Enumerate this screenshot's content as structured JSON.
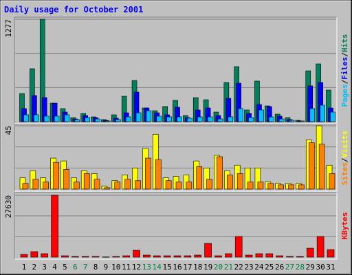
{
  "chart_data": {
    "type": "bar",
    "title": "Daily usage for October 2001",
    "title_color": "#0000ff",
    "background": "#c0c0c0",
    "categories": [
      "1",
      "2",
      "3",
      "4",
      "5",
      "6",
      "7",
      "8",
      "9",
      "10",
      "11",
      "12",
      "13",
      "14",
      "15",
      "16",
      "17",
      "18",
      "19",
      "20",
      "21",
      "22",
      "23",
      "24",
      "25",
      "26",
      "27",
      "28",
      "29",
      "30",
      "31"
    ],
    "category_colors": [
      "#000000",
      "#000000",
      "#000000",
      "#000000",
      "#000000",
      "#008040",
      "#008040",
      "#000000",
      "#000000",
      "#000000",
      "#000000",
      "#000000",
      "#008040",
      "#008040",
      "#000000",
      "#000000",
      "#000000",
      "#000000",
      "#000000",
      "#008040",
      "#008040",
      "#000000",
      "#000000",
      "#000000",
      "#000000",
      "#000000",
      "#008040",
      "#008040",
      "#000000",
      "#000000",
      "#000000"
    ],
    "legend_separator": "/",
    "panels": [
      {
        "ylim": [
          0,
          1277
        ],
        "yticks": [
          1277
        ],
        "grid": true,
        "series": [
          {
            "name": "Hits",
            "color": "#00805c",
            "values": [
              351,
              660,
              1277,
              231,
              163,
              51,
              103,
              60,
              26,
              86,
              317,
              514,
              171,
              137,
              189,
              266,
              77,
              300,
              274,
              120,
              489,
              686,
              146,
              506,
              197,
              94,
              51,
              17,
              634,
              720,
              394
            ]
          },
          {
            "name": "Files",
            "color": "#0000ff",
            "values": [
              163,
              326,
              300,
              231,
              120,
              34,
              77,
              51,
              17,
              43,
              111,
              369,
              171,
              111,
              86,
              180,
              51,
              146,
              171,
              77,
              291,
              480,
              103,
              214,
              189,
              69,
              26,
              9,
              446,
              489,
              171
            ]
          },
          {
            "name": "Pages",
            "color": "#00c0ff",
            "values": [
              86,
              86,
              69,
              69,
              86,
              26,
              51,
              34,
              9,
              26,
              60,
              111,
              137,
              69,
              60,
              60,
              43,
              60,
              60,
              34,
              60,
              163,
              51,
              146,
              60,
              34,
              17,
              9,
              163,
              206,
              120
            ]
          }
        ]
      },
      {
        "ylim": [
          0,
          45
        ],
        "yticks": [
          45
        ],
        "grid": true,
        "series": [
          {
            "name": "Visits",
            "color": "#ffff00",
            "values": [
              8,
              13,
              8,
              22,
              20,
              8,
              13,
              11,
              2,
              6,
              10,
              15,
              29,
              39,
              8,
              9,
              10,
              20,
              15,
              24,
              13,
              17,
              15,
              15,
              5,
              4,
              4,
              4,
              35,
              45,
              17
            ]
          },
          {
            "name": "Sites",
            "color": "#ff8000",
            "values": [
              4,
              7,
              5,
              19,
              14,
              5,
              11,
              7,
              1,
              5,
              7,
              6,
              22,
              21,
              6,
              5,
              5,
              16,
              7,
              23,
              10,
              11,
              5,
              5,
              4,
              3,
              3,
              3,
              33,
              32,
              11
            ]
          }
        ]
      },
      {
        "ylim": [
          0,
          27630
        ],
        "yticks": [
          27630
        ],
        "grid": true,
        "series": [
          {
            "name": "KBytes",
            "color": "#ff0000",
            "values": [
              1228,
              2456,
              1535,
              27630,
              614,
              307,
              307,
              307,
              100,
              307,
              614,
              3070,
              921,
              614,
              614,
              614,
              614,
              921,
              6140,
              614,
              1535,
              9210,
              921,
              1535,
              1535,
              614,
              307,
              307,
              3991,
              9210,
              3377
            ]
          }
        ]
      }
    ]
  }
}
